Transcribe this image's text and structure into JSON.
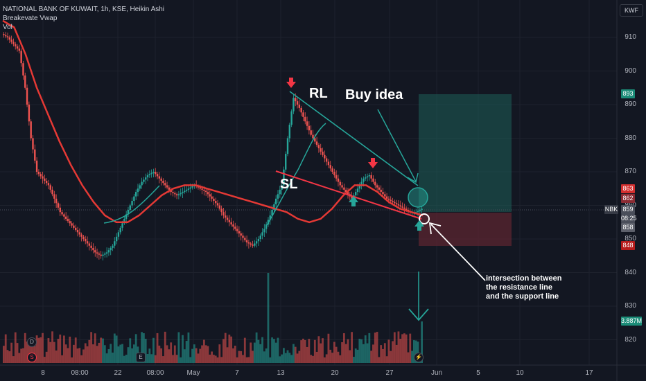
{
  "header": {
    "symbol_line": "NATIONAL BANK OF KUWAIT, 1h, KSE, Heikin Ashi",
    "indicator_line": "Breakevate Vwap",
    "vol_line": "Vol"
  },
  "currency": "KWF",
  "price_axis": [
    "910",
    "900",
    "890",
    "880",
    "870",
    "860",
    "850",
    "840",
    "830",
    "820"
  ],
  "price_tags": {
    "tp": "893",
    "red1": "863",
    "red2": "862",
    "symbol": "NBK",
    "last": "859",
    "countdown": "08:25",
    "grey": "858",
    "sl": "848",
    "volume": "3.887M"
  },
  "time_axis": [
    "8",
    "08:00",
    "22",
    "08:00",
    "May",
    "7",
    "13",
    "20",
    "27",
    "Jun",
    "5",
    "10",
    "17"
  ],
  "annotations": {
    "rl": "RL",
    "buy_idea": "Buy idea",
    "sl": "SL",
    "note_line1": "intersection between",
    "note_line2": "the resistance line",
    "note_line3": "and the support line"
  },
  "badges": {
    "d": "D",
    "s": "S",
    "e": "E"
  },
  "colors": {
    "background": "#131722",
    "up": "#26a69a",
    "down": "#ef5350",
    "vwap": "#f23645",
    "grid": "#1e222d"
  },
  "chart_data": {
    "type": "candlestick",
    "title": "NATIONAL BANK OF KUWAIT, 1h, KSE, Heikin Ashi",
    "ylim": [
      812,
      918
    ],
    "series": [
      {
        "name": "Price (Heikin Ashi close, approx.)",
        "values": [
          910,
          908,
          906,
          895,
          880,
          870,
          868,
          866,
          862,
          858,
          856,
          854,
          852,
          850,
          848,
          846,
          845,
          846,
          848,
          852,
          856,
          860,
          864,
          867,
          869,
          870,
          868,
          866,
          864,
          863,
          864,
          865,
          866,
          865,
          864,
          862,
          860,
          857,
          855,
          853,
          851,
          849,
          848,
          850,
          853,
          857,
          862,
          866,
          880,
          892,
          889,
          885,
          881,
          878,
          875,
          872,
          869,
          866,
          864,
          862,
          865,
          868,
          869,
          866,
          864,
          862,
          861,
          860,
          859,
          858,
          858,
          859
        ]
      },
      {
        "name": "Breakevate Vwap",
        "values": [
          915,
          913,
          905,
          895,
          887,
          879,
          872,
          866,
          861,
          857,
          855,
          855,
          857,
          860,
          863,
          865,
          866,
          866,
          865,
          864,
          863,
          862,
          861,
          860,
          859,
          858,
          856,
          855,
          856,
          859,
          863,
          866,
          866,
          864,
          861,
          859,
          858,
          857
        ]
      }
    ],
    "levels": {
      "take_profit": 893,
      "entry": 859,
      "stop_loss": 848
    },
    "x_ticks": [
      "8",
      "08:00",
      "22",
      "08:00",
      "May",
      "7",
      "13",
      "20",
      "27",
      "Jun",
      "5",
      "10",
      "17"
    ]
  }
}
